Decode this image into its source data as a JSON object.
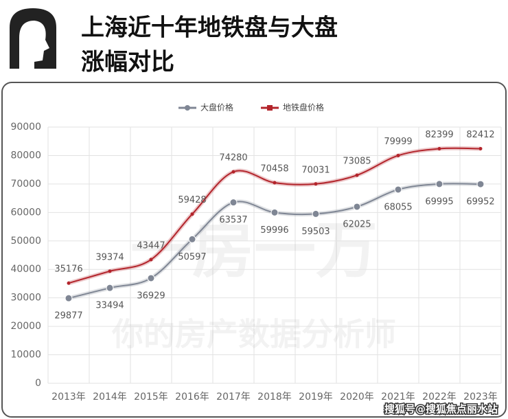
{
  "title": [
    "上海近十年地铁盘与大盘",
    "涨幅对比"
  ],
  "watermark": [
    "一房一万",
    "你的房产数据分析师"
  ],
  "footer": "搜狐号@搜狐焦点丽水站",
  "chart_data": {
    "type": "line",
    "categories": [
      "2013年",
      "2014年",
      "2015年",
      "2016年",
      "2017年",
      "2018年",
      "2019年",
      "2020年",
      "2021年",
      "2022年",
      "2023年"
    ],
    "series": [
      {
        "name": "大盘价格",
        "color": "#7f8694",
        "values": [
          29877,
          33494,
          36929,
          50597,
          63537,
          59996,
          59503,
          62025,
          68055,
          69995,
          69952
        ]
      },
      {
        "name": "地铁盘价格",
        "color": "#b3242b",
        "values": [
          35176,
          39374,
          43447,
          59428,
          74280,
          70458,
          70031,
          73085,
          79999,
          82399,
          82412
        ]
      }
    ],
    "ylim": [
      0,
      90000
    ],
    "yticks": [
      0,
      10000,
      20000,
      30000,
      40000,
      50000,
      60000,
      70000,
      80000,
      90000
    ],
    "grid": true,
    "legend": "top"
  }
}
